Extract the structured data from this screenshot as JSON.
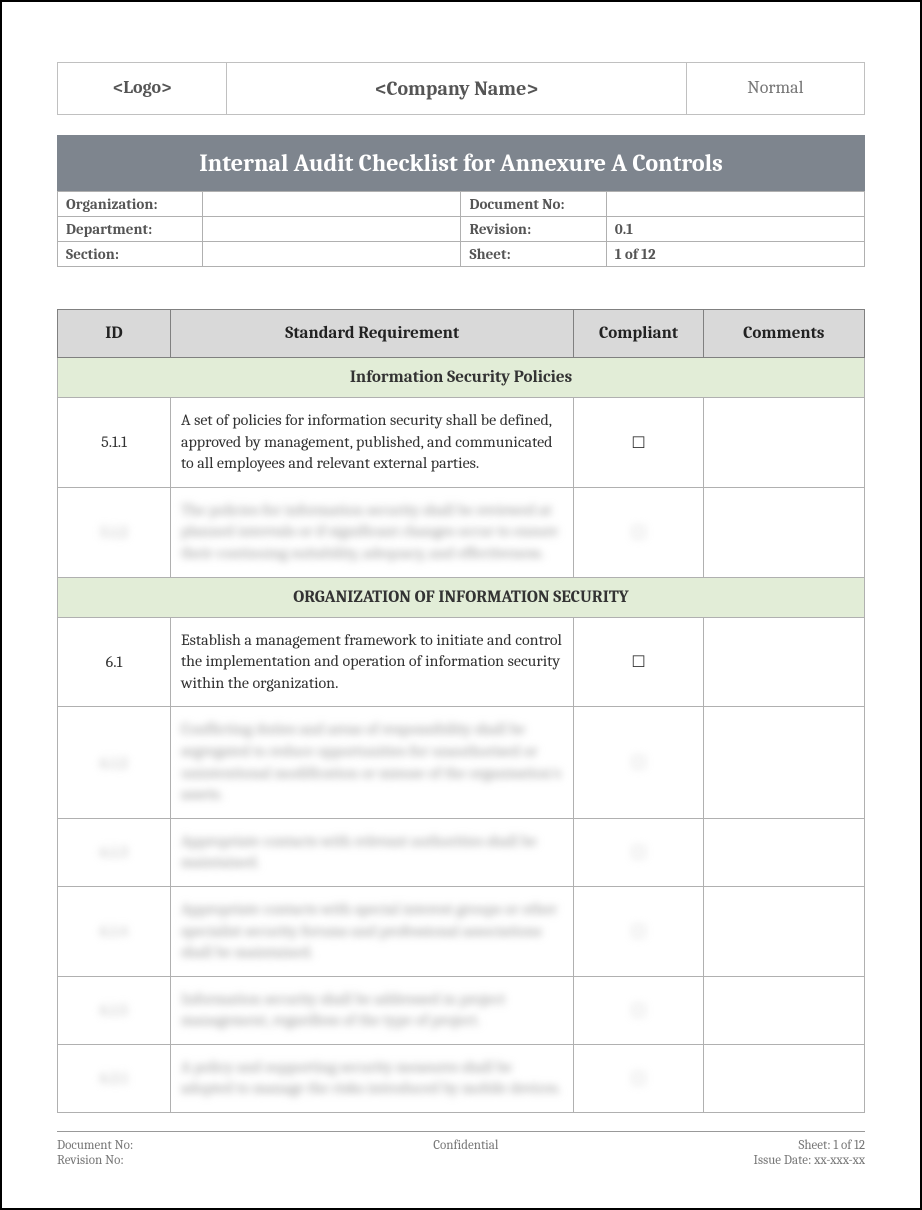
{
  "header": {
    "logo": "<Logo>",
    "company": "<Company Name>",
    "status": "Normal"
  },
  "title": "Internal Audit Checklist for Annexure A Controls",
  "meta": {
    "organization_label": "Organization:",
    "organization_value": "",
    "docno_label": "Document No:",
    "docno_value": "",
    "department_label": "Department:",
    "department_value": "",
    "revision_label": "Revision:",
    "revision_value": "0.1",
    "section_label": "Section:",
    "section_value": "",
    "sheet_label": "Sheet:",
    "sheet_value": "1 of 12"
  },
  "columns": {
    "id": "ID",
    "requirement": "Standard Requirement",
    "compliant": "Compliant",
    "comments": "Comments"
  },
  "sections": [
    {
      "title": "Information Security Policies"
    },
    {
      "title": "ORGANIZATION OF INFORMATION SECURITY"
    }
  ],
  "rows": {
    "r1": {
      "id": "5.1.1",
      "req": "A set of policies for information security shall be defined, approved by management, published, and communicated to all employees and relevant external parties.",
      "checkbox": "☐",
      "comments": ""
    },
    "r2": {
      "id": "5.1.2",
      "req": "The policies for information security shall be reviewed at planned intervals or if significant changes occur to ensure their continuing suitability, adequacy, and effectiveness.",
      "checkbox": "☐",
      "comments": ""
    },
    "r3": {
      "id": "6.1",
      "req": "Establish a management framework to initiate and control the implementation and operation of information security within the organization.",
      "checkbox": "☐",
      "comments": ""
    },
    "r4": {
      "id": "6.1.2",
      "req": "Conflicting duties and areas of responsibility shall be segregated to reduce opportunities for unauthorised or unintentional modification or misuse of the organisation's assets.",
      "checkbox": "☐",
      "comments": ""
    },
    "r5": {
      "id": "6.1.3",
      "req": "Appropriate contacts with relevant authorities shall be maintained.",
      "checkbox": "☐",
      "comments": ""
    },
    "r6": {
      "id": "6.1.4",
      "req": "Appropriate contacts with special interest groups or other specialist security forums and professional associations shall be maintained.",
      "checkbox": "☐",
      "comments": ""
    },
    "r7": {
      "id": "6.1.5",
      "req": "Information security shall be addressed in project management, regardless of the type of project.",
      "checkbox": "☐",
      "comments": ""
    },
    "r8": {
      "id": "6.2.1",
      "req": "A policy and supporting security measures shall be adopted to manage the risks introduced by mobile devices.",
      "checkbox": "☐",
      "comments": ""
    }
  },
  "footer": {
    "docno_label": "Document No:",
    "revision_label": "Revision No:",
    "confidential": "Confidential",
    "sheet_label": "Sheet: 1 of 12",
    "issue_label": "Issue Date: xx-xxx-xx"
  },
  "style": {
    "banner_bg": "#7e858e",
    "banner_fg": "#ffffff",
    "th_bg": "#d9d9d9",
    "section_bg": "#e2edd7",
    "border": "#b0b0b0",
    "page_border": "#000000"
  }
}
